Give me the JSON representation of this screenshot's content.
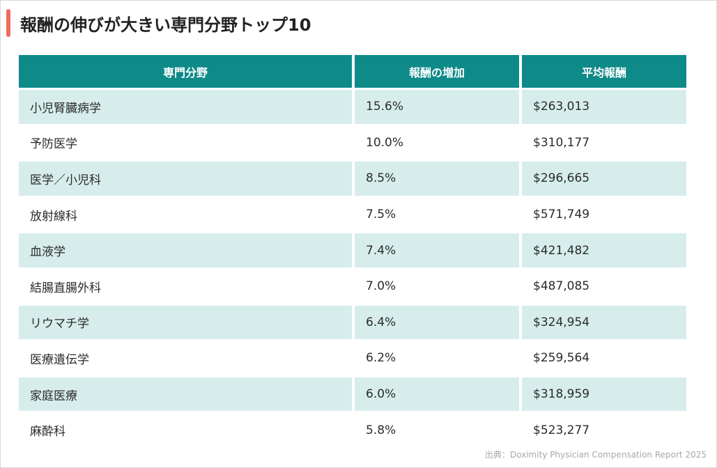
{
  "title": "報酬の伸びが大きい専門分野トップ10",
  "colors": {
    "accent": "#f06a5e",
    "header_bg": "#0e8a88",
    "row_shade": "#d6edeb"
  },
  "table": {
    "headers": [
      "専門分野",
      "報酬の増加",
      "平均報酬"
    ],
    "rows": [
      [
        "小児腎臓病学",
        "15.6%",
        "$263,013"
      ],
      [
        "予防医学",
        "10.0%",
        "$310,177"
      ],
      [
        "医学／小児科",
        "8.5%",
        "$296,665"
      ],
      [
        "放射線科",
        "7.5%",
        "$571,749"
      ],
      [
        "血液学",
        "7.4%",
        "$421,482"
      ],
      [
        "結腸直腸外科",
        "7.0%",
        "$487,085"
      ],
      [
        "リウマチ学",
        "6.4%",
        "$324,954"
      ],
      [
        "医療遺伝学",
        "6.2%",
        "$259,564"
      ],
      [
        "家庭医療",
        "6.0%",
        "$318,959"
      ],
      [
        "麻酔科",
        "5.8%",
        "$523,277"
      ]
    ]
  },
  "source": "出典：Doximity Physician Compensation Report 2025"
}
